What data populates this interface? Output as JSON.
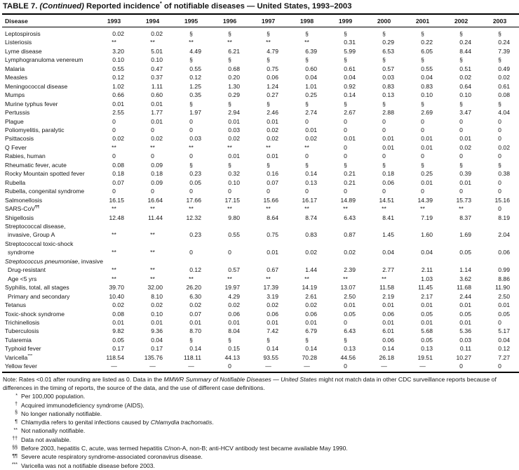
{
  "title": {
    "t1": "TABLE 7. ",
    "cont": "(Continued)",
    "t2": " Reported incidence",
    "sup": "*",
    "t3": " of notifiable diseases — United States, 1993–2003"
  },
  "table": {
    "columns": [
      "Disease",
      "1993",
      "1994",
      "1995",
      "1996",
      "1997",
      "1998",
      "1999",
      "2000",
      "2001",
      "2002",
      "2003"
    ],
    "rows": [
      {
        "label": "Leptospirosis",
        "values": [
          "0.02",
          "0.02",
          "§",
          "§",
          "§",
          "§",
          "§",
          "§",
          "§",
          "§",
          "§"
        ]
      },
      {
        "label": "Listeriosis",
        "values": [
          "**",
          "**",
          "**",
          "**",
          "**",
          "**",
          "0.31",
          "0.29",
          "0.22",
          "0.24",
          "0.24"
        ]
      },
      {
        "label": "Lyme disease",
        "values": [
          "3.20",
          "5.01",
          "4.49",
          "6.21",
          "4.79",
          "6.39",
          "5.99",
          "6.53",
          "6.05",
          "8.44",
          "7.39"
        ]
      },
      {
        "label": "Lymphogranuloma venereum",
        "values": [
          "0.10",
          "0.10",
          "§",
          "§",
          "§",
          "§",
          "§",
          "§",
          "§",
          "§",
          "§"
        ]
      },
      {
        "label": "Malaria",
        "values": [
          "0.55",
          "0.47",
          "0.55",
          "0.68",
          "0.75",
          "0.60",
          "0.61",
          "0.57",
          "0.55",
          "0.51",
          "0.49"
        ]
      },
      {
        "label": "Measles",
        "values": [
          "0.12",
          "0.37",
          "0.12",
          "0.20",
          "0.06",
          "0.04",
          "0.04",
          "0.03",
          "0.04",
          "0.02",
          "0.02"
        ]
      },
      {
        "label": "Meningococcal disease",
        "values": [
          "1.02",
          "1.11",
          "1.25",
          "1.30",
          "1.24",
          "1.01",
          "0.92",
          "0.83",
          "0.83",
          "0.64",
          "0.61"
        ]
      },
      {
        "label": "Mumps",
        "values": [
          "0.66",
          "0.60",
          "0.35",
          "0.29",
          "0.27",
          "0.25",
          "0.14",
          "0.13",
          "0.10",
          "0.10",
          "0.08"
        ]
      },
      {
        "label": "Murine typhus fever",
        "values": [
          "0.01",
          "0.01",
          "§",
          "§",
          "§",
          "§",
          "§",
          "§",
          "§",
          "§",
          "§"
        ]
      },
      {
        "label": "Pertussis",
        "values": [
          "2.55",
          "1.77",
          "1.97",
          "2.94",
          "2.46",
          "2.74",
          "2.67",
          "2.88",
          "2.69",
          "3.47",
          "4.04"
        ]
      },
      {
        "label": "Plague",
        "values": [
          "0",
          "0.01",
          "0",
          "0.01",
          "0.01",
          "0",
          "0",
          "0",
          "0",
          "0",
          "0"
        ]
      },
      {
        "label": "Poliomyelitis, paralytic",
        "values": [
          "0",
          "0",
          "0",
          "0.03",
          "0.02",
          "0.01",
          "0",
          "0",
          "0",
          "0",
          "0"
        ]
      },
      {
        "label": "Psittacosis",
        "values": [
          "0.02",
          "0.02",
          "0.03",
          "0.02",
          "0.02",
          "0.02",
          "0.01",
          "0.01",
          "0.01",
          "0.01",
          "0"
        ]
      },
      {
        "label": "Q Fever",
        "values": [
          "**",
          "**",
          "**",
          "**",
          "**",
          "**",
          "0",
          "0.01",
          "0.01",
          "0.02",
          "0.02"
        ]
      },
      {
        "label": "Rabies, human",
        "values": [
          "0",
          "0",
          "0",
          "0.01",
          "0.01",
          "0",
          "0",
          "0",
          "0",
          "0",
          "0"
        ]
      },
      {
        "label": "Rheumatic fever, acute",
        "values": [
          "0.08",
          "0.09",
          "§",
          "§",
          "§",
          "§",
          "§",
          "§",
          "§",
          "§",
          "§"
        ]
      },
      {
        "label": "Rocky Mountain spotted fever",
        "values": [
          "0.18",
          "0.18",
          "0.23",
          "0.32",
          "0.16",
          "0.14",
          "0.21",
          "0.18",
          "0.25",
          "0.39",
          "0.38"
        ]
      },
      {
        "label": "Rubella",
        "values": [
          "0.07",
          "0.09",
          "0.05",
          "0.10",
          "0.07",
          "0.13",
          "0.21",
          "0.06",
          "0.01",
          "0.01",
          "0"
        ]
      },
      {
        "label": "Rubella, congenital syndrome",
        "values": [
          "0",
          "0",
          "0",
          "0",
          "0",
          "0",
          "0",
          "0",
          "0",
          "0",
          "0"
        ]
      },
      {
        "label": "Salmonellosis",
        "values": [
          "16.15",
          "16.64",
          "17.66",
          "17.15",
          "15.66",
          "16.17",
          "14.89",
          "14.51",
          "14.39",
          "15.73",
          "15.16"
        ]
      },
      {
        "label": "SARS-CoV",
        "sup": "¶¶",
        "values": [
          "**",
          "**",
          "**",
          "**",
          "**",
          "**",
          "**",
          "**",
          "**",
          "**",
          "0"
        ]
      },
      {
        "label": "Shigellosis",
        "values": [
          "12.48",
          "11.44",
          "12.32",
          "9.80",
          "8.64",
          "8.74",
          "6.43",
          "8.41",
          "7.19",
          "8.37",
          "8.19"
        ]
      },
      {
        "label": "Streptococcal disease,",
        "label2": "invasive, Group A",
        "values": [
          "**",
          "**",
          "0.23",
          "0.55",
          "0.75",
          "0.83",
          "0.87",
          "1.45",
          "1.60",
          "1.69",
          "2.04"
        ]
      },
      {
        "label": "Streptococcal toxic-shock",
        "label2": "syndrome",
        "values": [
          "**",
          "**",
          "0",
          "0",
          "0.01",
          "0.02",
          "0.02",
          "0.04",
          "0.04",
          "0.05",
          "0.06"
        ]
      },
      {
        "label_italic": "Streptococcus pneumoniae",
        "label": ", invasive",
        "section": true
      },
      {
        "label": "Drug-resistant",
        "indent": true,
        "values": [
          "**",
          "**",
          "0.12",
          "0.57",
          "0.67",
          "1.44",
          "2.39",
          "2.77",
          "2.11",
          "1.14",
          "0.99"
        ]
      },
      {
        "label": "Age <5 yrs",
        "indent": true,
        "values": [
          "**",
          "**",
          "**",
          "**",
          "**",
          "**",
          "**",
          "**",
          "1.03",
          "3.62",
          "8.86"
        ]
      },
      {
        "label": "Syphilis, total, all stages",
        "values": [
          "39.70",
          "32.00",
          "26.20",
          "19.97",
          "17.39",
          "14.19",
          "13.07",
          "11.58",
          "11.45",
          "11.68",
          "11.90"
        ]
      },
      {
        "label": "Primary and secondary",
        "indent": true,
        "values": [
          "10.40",
          "8.10",
          "6.30",
          "4.29",
          "3.19",
          "2.61",
          "2.50",
          "2.19",
          "2.17",
          "2.44",
          "2.50"
        ]
      },
      {
        "label": "Tetanus",
        "values": [
          "0.02",
          "0.02",
          "0.02",
          "0.02",
          "0.02",
          "0.02",
          "0.01",
          "0.01",
          "0.01",
          "0.01",
          "0.01"
        ]
      },
      {
        "label": "Toxic-shock syndrome",
        "values": [
          "0.08",
          "0.10",
          "0.07",
          "0.06",
          "0.06",
          "0.06",
          "0.05",
          "0.06",
          "0.05",
          "0.05",
          "0.05"
        ]
      },
      {
        "label": "Trichinellosis",
        "values": [
          "0.01",
          "0.01",
          "0.01",
          "0.01",
          "0.01",
          "0.01",
          "0",
          "0.01",
          "0.01",
          "0.01",
          "0"
        ]
      },
      {
        "label": "Tuberculosis",
        "values": [
          "9.82",
          "9.36",
          "8.70",
          "8.04",
          "7.42",
          "6.79",
          "6.43",
          "6.01",
          "5.68",
          "5.36",
          "5.17"
        ]
      },
      {
        "label": "Tularemia",
        "values": [
          "0.05",
          "0.04",
          "§",
          "§",
          "§",
          "§",
          "§",
          "0.06",
          "0.05",
          "0.03",
          "0.04"
        ]
      },
      {
        "label": "Typhoid fever",
        "values": [
          "0.17",
          "0.17",
          "0.14",
          "0.15",
          "0.14",
          "0.14",
          "0.13",
          "0.14",
          "0.13",
          "0.11",
          "0.12"
        ]
      },
      {
        "label": "Varicella",
        "sup": "***",
        "values": [
          "118.54",
          "135.76",
          "118.11",
          "44.13",
          "93.55",
          "70.28",
          "44.56",
          "26.18",
          "19.51",
          "10.27",
          "7.27"
        ]
      },
      {
        "label": "Yellow fever",
        "values": [
          "—",
          "—",
          "—",
          "0",
          "—",
          "—",
          "0",
          "—",
          "—",
          "0",
          "0"
        ]
      }
    ]
  },
  "note": {
    "pre": "Note: Rates <0.01 after rounding are listed as 0. Data in the ",
    "italic": "MMWR Summary of Notifiable Diseases — United States",
    "post": " might not match data in other CDC surveillance reports because of differences in the timing of reports, the source of the data, and the use of different case definitions."
  },
  "footnotes": [
    {
      "marker": "*",
      "pre": "Per 100,000 population.",
      "italic": "",
      "post": ""
    },
    {
      "marker": "†",
      "pre": "Acquired immunodeficiency syndrome (AIDS).",
      "italic": "",
      "post": ""
    },
    {
      "marker": "§",
      "pre": "No longer nationally notifiable.",
      "italic": "",
      "post": ""
    },
    {
      "marker": "¶",
      "pre": "Chlamydia refers to genital infections caused by ",
      "italic": "Chlamydia trachomatis",
      "post": "."
    },
    {
      "marker": "**",
      "pre": "Not nationally notifiable.",
      "italic": "",
      "post": ""
    },
    {
      "marker": "††",
      "pre": "Data not available.",
      "italic": "",
      "post": ""
    },
    {
      "marker": "§§",
      "pre": "Before 2003, hepatitis C, acute, was termed hepatitis C/non-A, non-B; anti-HCV antibody test became available May 1990.",
      "italic": "",
      "post": ""
    },
    {
      "marker": "¶¶",
      "pre": "Severe acute respiratory syndrome-associated coronavirus disease.",
      "italic": "",
      "post": ""
    },
    {
      "marker": "***",
      "pre": "Varicella was not a notifiable disease before 2003.",
      "italic": "",
      "post": ""
    }
  ]
}
